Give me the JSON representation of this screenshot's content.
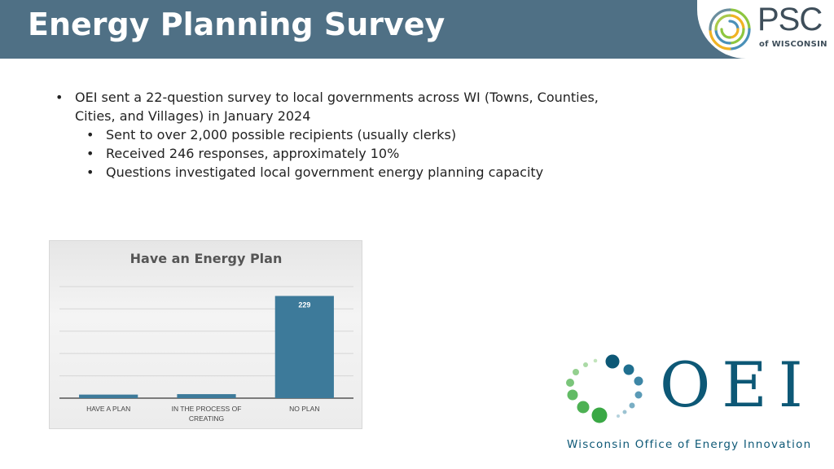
{
  "header": {
    "title": "Energy Planning Survey"
  },
  "psc_logo": {
    "main": "PSC",
    "sub": "of WISCONSIN"
  },
  "bullets": {
    "main": "OEI sent a 22-question survey to local governments across WI (Towns, Counties, Cities, and Villages) in January 2024",
    "sub": [
      "Sent to over 2,000 possible recipients (usually clerks)",
      "Received 246 responses, approximately 10%",
      "Questions investigated local government energy planning capacity"
    ]
  },
  "chart_data": {
    "type": "bar",
    "title": "Have an Energy Plan",
    "categories": [
      "HAVE A PLAN",
      "IN THE PROCESS OF CREATING",
      "NO PLAN"
    ],
    "values": [
      8,
      9,
      229
    ],
    "data_labels": [
      "",
      "",
      "229"
    ],
    "ylim": [
      0,
      270
    ],
    "grid": true,
    "bar_color": "#3d7a9a"
  },
  "oei_logo": {
    "main": "OEI",
    "sub": "Wisconsin Office of Energy Innovation"
  }
}
